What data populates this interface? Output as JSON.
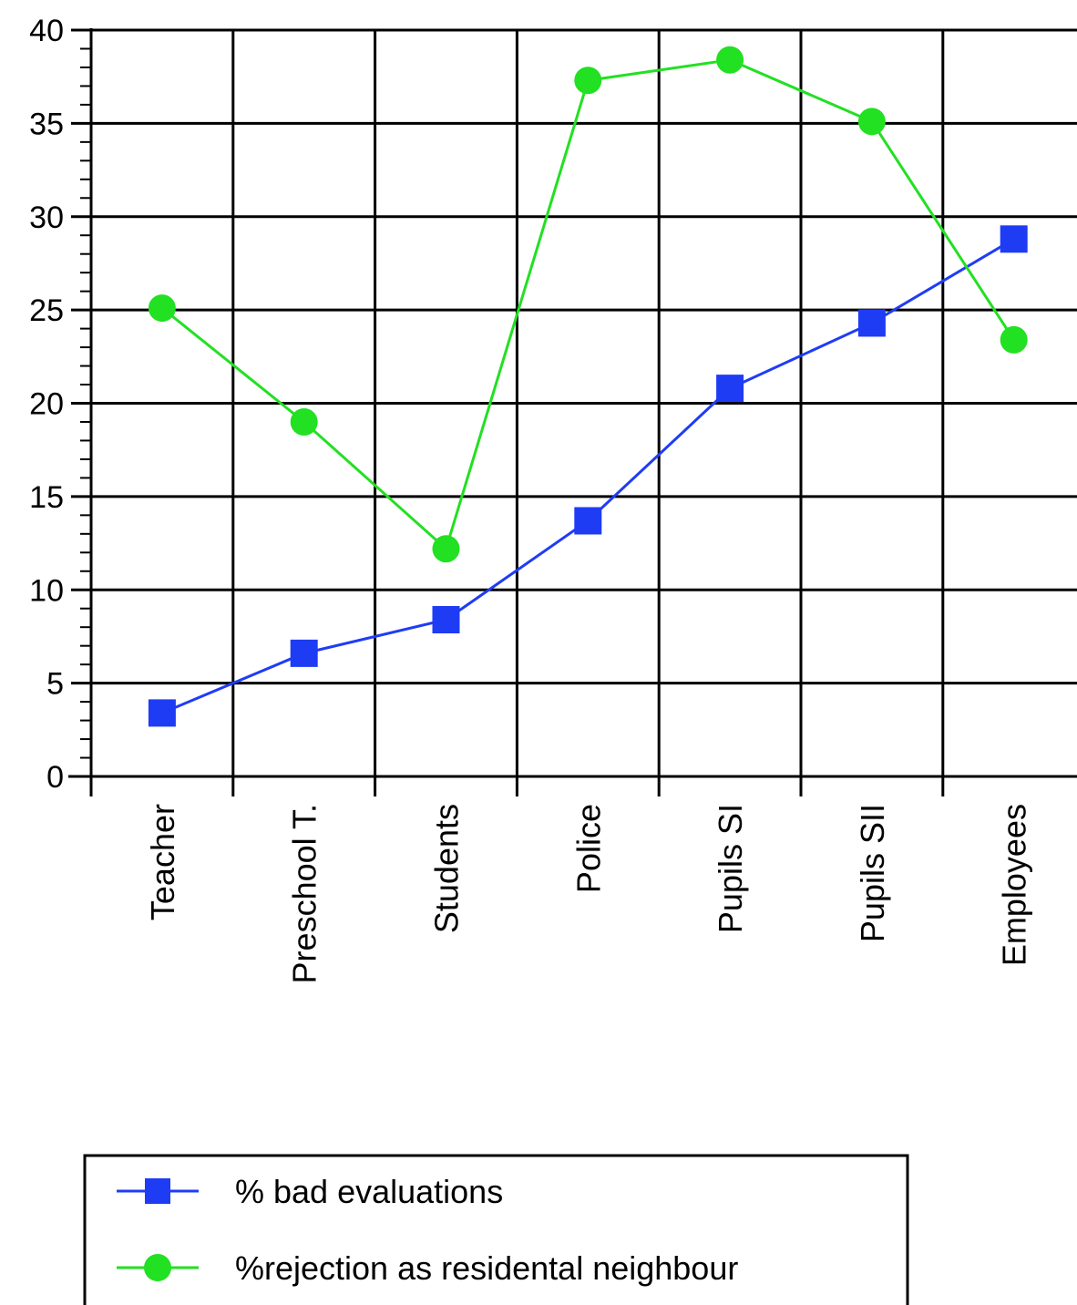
{
  "chart_data": {
    "type": "line",
    "categories": [
      "Teacher",
      "Preschool T.",
      "Students",
      "Police",
      "Pupils SI",
      "Pupils SII",
      "Employees"
    ],
    "series": [
      {
        "name": "% bad evaluations",
        "marker": "square",
        "color": "#1f3cf5",
        "values": [
          3.4,
          6.6,
          8.4,
          13.7,
          20.8,
          24.3,
          28.8
        ]
      },
      {
        "name": "%rejection as residental neighbour",
        "marker": "circle",
        "color": "#22e022",
        "values": [
          25.1,
          19.0,
          12.2,
          37.3,
          38.4,
          35.1,
          23.4
        ]
      }
    ],
    "ylim": [
      0,
      40
    ],
    "yticks": [
      0,
      5,
      10,
      15,
      20,
      25,
      30,
      35,
      40
    ],
    "ytick_labels": [
      "0",
      "5",
      "10",
      "15",
      "20",
      "25",
      "30",
      "35",
      "40"
    ],
    "grid": true,
    "legend_position": "bottom"
  }
}
